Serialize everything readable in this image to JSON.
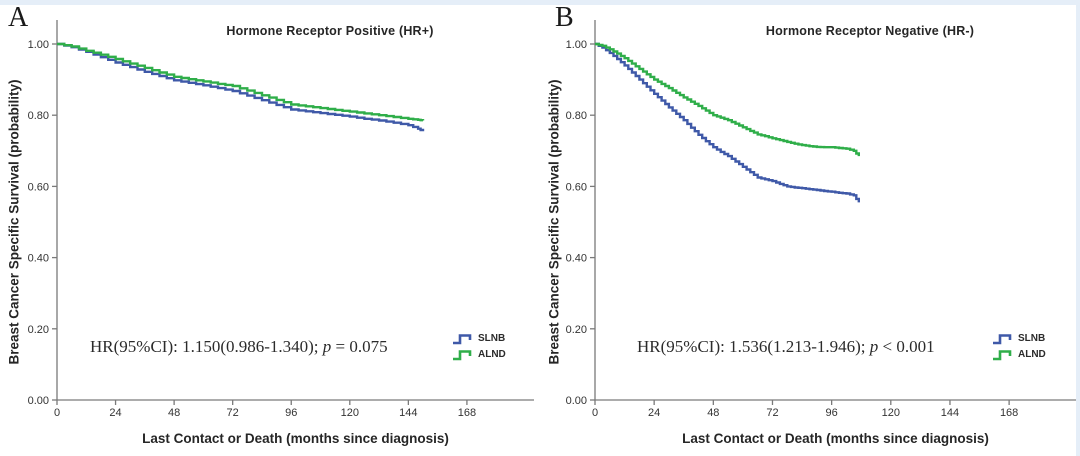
{
  "page": {
    "background": "#ffffff",
    "frame_color": "#e5eef8"
  },
  "colors": {
    "slnb": "#3f59a8",
    "alnd": "#2fae49",
    "axis": "#7a7a7a",
    "tick_text": "#333333"
  },
  "legend": {
    "items": [
      {
        "label": "SLNB",
        "color": "#3f59a8"
      },
      {
        "label": "ALND",
        "color": "#2fae49"
      }
    ]
  },
  "chart_data": [
    {
      "type": "line",
      "style": "kaplan-meier-step",
      "panel_label": "A",
      "title": "Hormone Receptor Positive (HR+)",
      "xlabel": "Last Contact or Death (months since diagnosis)",
      "ylabel": "Breast Cancer Specific Survival (probability)",
      "xlim": [
        0,
        195
      ],
      "ylim": [
        0.0,
        1.0
      ],
      "x_ticks": [
        0,
        24,
        48,
        72,
        96,
        120,
        144,
        168
      ],
      "y_ticks": [
        {
          "value": 0.0,
          "label": "0.00"
        },
        {
          "value": 0.2,
          "label": "0.20"
        },
        {
          "value": 0.4,
          "label": "0.40"
        },
        {
          "value": 0.6,
          "label": "0.60"
        },
        {
          "value": 0.8,
          "label": "0.80"
        },
        {
          "value": 1.0,
          "label": "1.00"
        }
      ],
      "annotation": {
        "before_p": "HR(95%CI): 1.150(0.986-1.340); ",
        "p": "p",
        "after_p": " = 0.075"
      },
      "series": [
        {
          "name": "SLNB",
          "color": "#3f59a8",
          "x": [
            0,
            6,
            12,
            18,
            24,
            30,
            36,
            42,
            48,
            54,
            60,
            66,
            72,
            78,
            84,
            90,
            96,
            102,
            108,
            114,
            120,
            126,
            132,
            138,
            144,
            148,
            150
          ],
          "y": [
            1.0,
            0.991,
            0.978,
            0.963,
            0.948,
            0.935,
            0.922,
            0.91,
            0.898,
            0.891,
            0.884,
            0.876,
            0.868,
            0.855,
            0.842,
            0.829,
            0.816,
            0.811,
            0.806,
            0.801,
            0.796,
            0.79,
            0.785,
            0.779,
            0.772,
            0.762,
            0.755
          ]
        },
        {
          "name": "ALND",
          "color": "#2fae49",
          "x": [
            0,
            6,
            12,
            18,
            24,
            30,
            36,
            42,
            48,
            54,
            60,
            66,
            72,
            78,
            84,
            90,
            96,
            102,
            108,
            114,
            120,
            126,
            132,
            138,
            144,
            148,
            150
          ],
          "y": [
            1.0,
            0.993,
            0.981,
            0.97,
            0.958,
            0.945,
            0.933,
            0.92,
            0.908,
            0.901,
            0.895,
            0.888,
            0.882,
            0.869,
            0.856,
            0.843,
            0.83,
            0.825,
            0.82,
            0.815,
            0.81,
            0.805,
            0.8,
            0.795,
            0.79,
            0.787,
            0.785
          ]
        }
      ]
    },
    {
      "type": "line",
      "style": "kaplan-meier-step",
      "panel_label": "B",
      "title": "Hormone Receptor Negative (HR-)",
      "xlabel": "Last Contact or Death (months since diagnosis)",
      "ylabel": "Breast Cancer Specific Survival (probability)",
      "xlim": [
        0,
        195
      ],
      "ylim": [
        0.0,
        1.0
      ],
      "x_ticks": [
        0,
        24,
        48,
        72,
        96,
        120,
        144,
        168
      ],
      "y_ticks": [
        {
          "value": 0.0,
          "label": "0.00"
        },
        {
          "value": 0.2,
          "label": "0.20"
        },
        {
          "value": 0.4,
          "label": "0.40"
        },
        {
          "value": 0.6,
          "label": "0.60"
        },
        {
          "value": 0.8,
          "label": "0.80"
        },
        {
          "value": 1.0,
          "label": "1.00"
        }
      ],
      "annotation": {
        "before_p": "HR(95%CI): 1.536(1.213-1.946); ",
        "p": "p",
        "after_p": " < 0.001"
      },
      "series": [
        {
          "name": "SLNB",
          "color": "#3f59a8",
          "x": [
            0,
            3,
            6,
            9,
            12,
            15,
            18,
            21,
            24,
            27,
            30,
            33,
            36,
            39,
            42,
            45,
            48,
            51,
            54,
            57,
            60,
            63,
            66,
            69,
            72,
            75,
            78,
            81,
            84,
            87,
            90,
            93,
            96,
            99,
            102,
            105,
            107
          ],
          "y": [
            1.0,
            0.99,
            0.975,
            0.958,
            0.94,
            0.92,
            0.9,
            0.88,
            0.86,
            0.841,
            0.822,
            0.804,
            0.786,
            0.765,
            0.745,
            0.727,
            0.71,
            0.697,
            0.685,
            0.67,
            0.655,
            0.64,
            0.625,
            0.62,
            0.615,
            0.607,
            0.6,
            0.597,
            0.595,
            0.592,
            0.59,
            0.587,
            0.585,
            0.582,
            0.58,
            0.575,
            0.555
          ]
        },
        {
          "name": "ALND",
          "color": "#2fae49",
          "x": [
            0,
            3,
            6,
            9,
            12,
            15,
            18,
            21,
            24,
            27,
            30,
            33,
            36,
            39,
            42,
            45,
            48,
            51,
            54,
            57,
            60,
            63,
            66,
            69,
            72,
            75,
            78,
            81,
            84,
            87,
            90,
            93,
            96,
            99,
            102,
            105,
            107
          ],
          "y": [
            1.0,
            0.995,
            0.985,
            0.973,
            0.96,
            0.945,
            0.93,
            0.915,
            0.9,
            0.888,
            0.876,
            0.863,
            0.85,
            0.838,
            0.826,
            0.813,
            0.8,
            0.793,
            0.786,
            0.776,
            0.766,
            0.756,
            0.746,
            0.741,
            0.735,
            0.73,
            0.725,
            0.72,
            0.716,
            0.713,
            0.711,
            0.71,
            0.71,
            0.708,
            0.706,
            0.7,
            0.685
          ]
        }
      ]
    }
  ]
}
